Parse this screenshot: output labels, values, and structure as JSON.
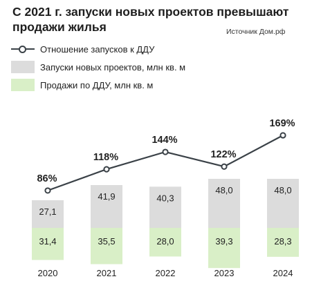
{
  "title": "С 2021 г. запуски новых проектов превышают продажи жилья",
  "source": "Источник Дом.рф",
  "legend": {
    "ratio": "Отношение запусков к ДДУ",
    "launches": "Запуски новых проектов, млн кв. м",
    "sales": "Продажи по ДДУ, млн кв. м"
  },
  "colors": {
    "launches": "#dcdcdc",
    "sales": "#d9efc7",
    "line": "#3a4147"
  },
  "chart_data": {
    "type": "bar",
    "categories": [
      "2020",
      "2021",
      "2022",
      "2023",
      "2024"
    ],
    "series": [
      {
        "name": "Запуски новых проектов, млн кв. м",
        "values": [
          27.1,
          41.9,
          40.3,
          48.0,
          48.0
        ],
        "labels": [
          "27,1",
          "41,9",
          "40,3",
          "48,0",
          "48,0"
        ]
      },
      {
        "name": "Продажи по ДДУ, млн кв. м",
        "values": [
          31.4,
          35.5,
          28.0,
          39.3,
          28.3
        ],
        "labels": [
          "31,4",
          "35,5",
          "28,0",
          "39,3",
          "28,3"
        ]
      },
      {
        "name": "Отношение запусков к ДДУ",
        "values": [
          86,
          118,
          144,
          122,
          169
        ],
        "labels": [
          "86%",
          "118%",
          "144%",
          "122%",
          "169%"
        ]
      }
    ]
  }
}
